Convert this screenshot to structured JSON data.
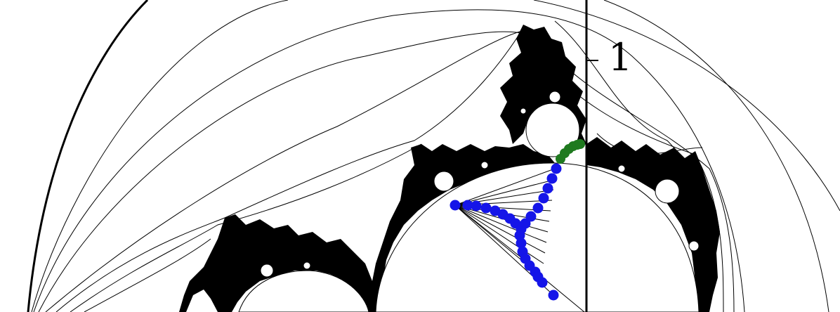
{
  "figure": {
    "tick_label": "1",
    "colors": {
      "background": "#ffffff",
      "curves": "#000000",
      "set": "#000000",
      "path_primary": "#1515e8",
      "path_secondary": "#1f7a1f"
    }
  }
}
